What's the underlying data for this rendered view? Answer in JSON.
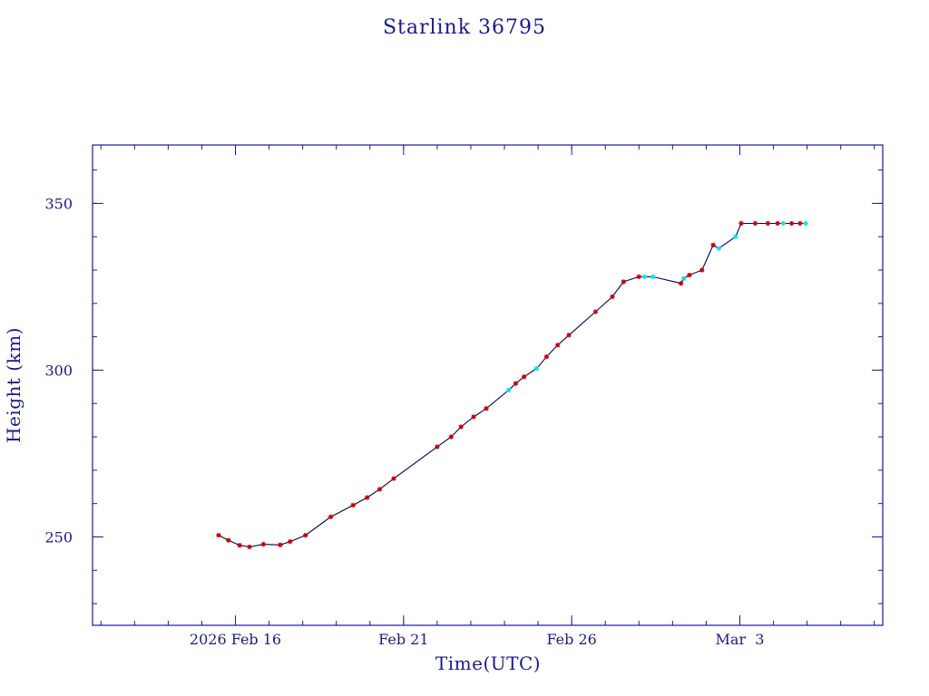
{
  "colors": {
    "axis": "#1a1a8c",
    "line": "#000060",
    "marker_red": "#cc0000",
    "marker_cyan": "#00e5ee",
    "background": "#ffffff"
  },
  "chart_data": {
    "type": "line",
    "title": "Starlink 36795",
    "xlabel": "Time(UTC)",
    "ylabel": "Height (km)",
    "x_unit": "date (days, UTC)",
    "xlim": [
      "2026-02-11T18:00",
      "2026-03-07T06:00"
    ],
    "ylim": [
      223.5,
      367.5
    ],
    "x_ticks": [
      {
        "date": "2026-02-16",
        "label": "2026 Feb 16"
      },
      {
        "date": "2026-02-21",
        "label": "Feb 21"
      },
      {
        "date": "2026-02-26",
        "label": "Feb 26"
      },
      {
        "date": "2026-03-03",
        "label": "Mar  3"
      }
    ],
    "y_ticks": [
      250,
      300,
      350
    ],
    "grid": false,
    "series": [
      {
        "points": [
          [
            "2026-02-15T12:00",
            250.5,
            "red"
          ],
          [
            "2026-02-15T19:00",
            249.0,
            "red"
          ],
          [
            "2026-02-16T03:00",
            247.5,
            "red"
          ],
          [
            "2026-02-16T10:00",
            247.0,
            "red"
          ],
          [
            "2026-02-16T20:00",
            247.8,
            "red"
          ],
          [
            "2026-02-17T08:00",
            247.6,
            "red"
          ],
          [
            "2026-02-17T15:00",
            248.6,
            "red"
          ],
          [
            "2026-02-18T02:00",
            250.5,
            "red"
          ],
          [
            "2026-02-18T20:00",
            256.0,
            "red"
          ],
          [
            "2026-02-19T12:00",
            259.5,
            "red"
          ],
          [
            "2026-02-19T22:00",
            261.8,
            "red"
          ],
          [
            "2026-02-20T07:00",
            264.3,
            "red"
          ],
          [
            "2026-02-20T17:00",
            267.5,
            "red"
          ],
          [
            "2026-02-22T00:00",
            277.0,
            "red"
          ],
          [
            "2026-02-22T10:00",
            280.0,
            "red"
          ],
          [
            "2026-02-22T17:00",
            283.0,
            "red"
          ],
          [
            "2026-02-23T02:00",
            286.0,
            "red"
          ],
          [
            "2026-02-23T11:00",
            288.5,
            "red"
          ],
          [
            "2026-02-24T03:00",
            294.0,
            "cyan"
          ],
          [
            "2026-02-24T08:00",
            296.0,
            "red"
          ],
          [
            "2026-02-24T14:00",
            298.0,
            "red"
          ],
          [
            "2026-02-24T23:00",
            300.5,
            "cyan"
          ],
          [
            "2026-02-25T06:00",
            304.0,
            "red"
          ],
          [
            "2026-02-25T14:00",
            307.5,
            "red"
          ],
          [
            "2026-02-25T22:00",
            310.5,
            "red"
          ],
          [
            "2026-02-26T17:00",
            317.5,
            "red"
          ],
          [
            "2026-02-27T05:00",
            322.0,
            "red"
          ],
          [
            "2026-02-27T13:00",
            326.5,
            "red"
          ],
          [
            "2026-02-28T00:00",
            328.0,
            "red"
          ],
          [
            "2026-02-28T04:00",
            328.0,
            "cyan"
          ],
          [
            "2026-02-28T10:00",
            328.0,
            "cyan"
          ],
          [
            "2026-03-01T06:00",
            326.0,
            "red"
          ],
          [
            "2026-03-01T08:00",
            327.5,
            "cyan"
          ],
          [
            "2026-03-01T12:00",
            328.5,
            "red"
          ],
          [
            "2026-03-01T21:00",
            330.0,
            "red"
          ],
          [
            "2026-03-02T05:00",
            337.5,
            "red"
          ],
          [
            "2026-03-02T09:00",
            336.5,
            "cyan"
          ],
          [
            "2026-03-02T21:00",
            340.0,
            "cyan"
          ],
          [
            "2026-03-03T01:00",
            344.0,
            "red"
          ],
          [
            "2026-03-03T11:00",
            344.0,
            "red"
          ],
          [
            "2026-03-03T20:00",
            344.0,
            "red"
          ],
          [
            "2026-03-04T03:00",
            344.0,
            "red"
          ],
          [
            "2026-03-04T07:00",
            344.0,
            "cyan"
          ],
          [
            "2026-03-04T13:00",
            344.0,
            "red"
          ],
          [
            "2026-03-04T19:00",
            344.0,
            "red"
          ],
          [
            "2026-03-04T23:00",
            344.0,
            "cyan"
          ]
        ]
      }
    ]
  }
}
